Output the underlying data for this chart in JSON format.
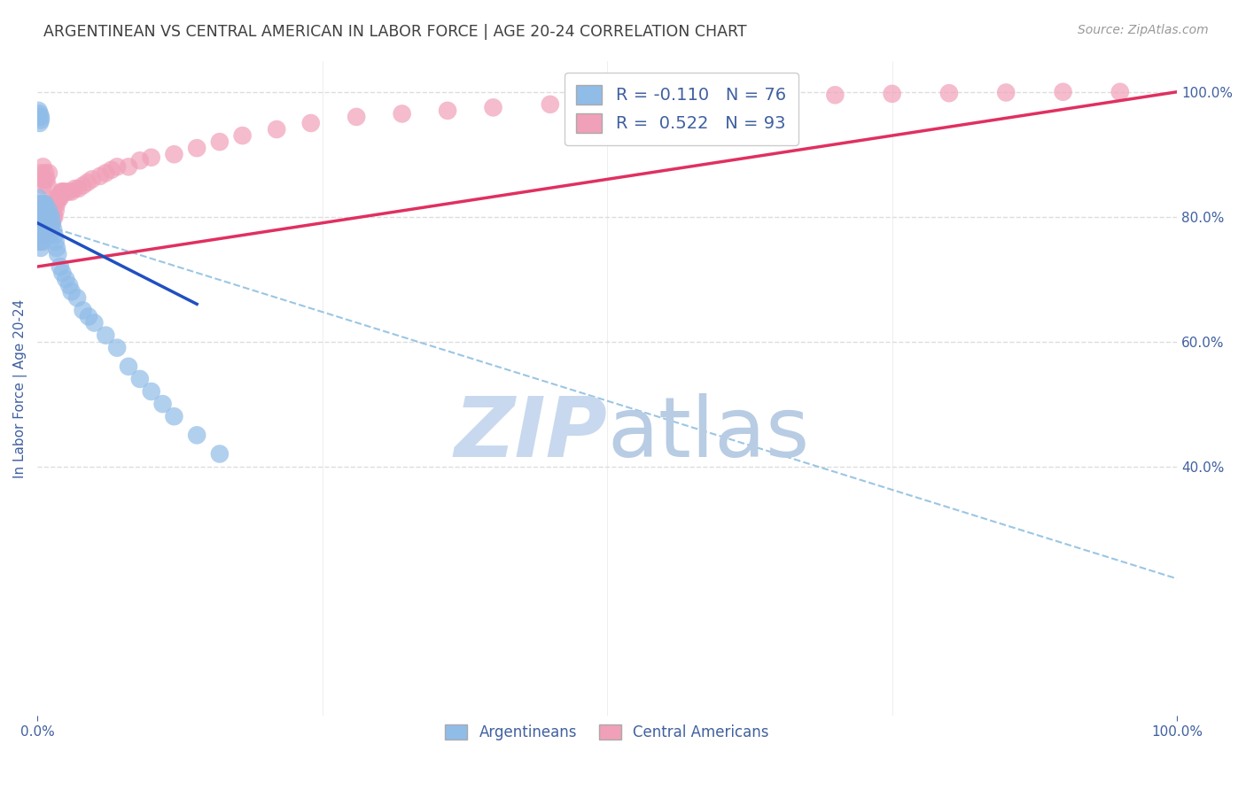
{
  "title": "ARGENTINEAN VS CENTRAL AMERICAN IN LABOR FORCE | AGE 20-24 CORRELATION CHART",
  "source": "Source: ZipAtlas.com",
  "ylabel": "In Labor Force | Age 20-24",
  "argentinean_color": "#90bce8",
  "central_american_color": "#f0a0b8",
  "argentinean_line_color": "#2050c0",
  "central_american_line_color": "#e03060",
  "dashed_line_color": "#90c0e0",
  "watermark_zip_color": "#c8d8ee",
  "watermark_atlas_color": "#c8d8ee",
  "background_color": "#ffffff",
  "grid_color": "#dddddd",
  "title_color": "#404040",
  "axis_label_color": "#4060a0",
  "arg_x": [
    0.001,
    0.001,
    0.001,
    0.001,
    0.001,
    0.002,
    0.002,
    0.002,
    0.002,
    0.002,
    0.002,
    0.003,
    0.003,
    0.003,
    0.003,
    0.003,
    0.003,
    0.004,
    0.004,
    0.004,
    0.004,
    0.005,
    0.005,
    0.005,
    0.005,
    0.005,
    0.006,
    0.006,
    0.006,
    0.006,
    0.007,
    0.007,
    0.007,
    0.007,
    0.008,
    0.008,
    0.008,
    0.009,
    0.009,
    0.01,
    0.01,
    0.01,
    0.011,
    0.011,
    0.012,
    0.012,
    0.013,
    0.014,
    0.015,
    0.016,
    0.017,
    0.018,
    0.02,
    0.022,
    0.025,
    0.028,
    0.03,
    0.035,
    0.04,
    0.045,
    0.05,
    0.06,
    0.07,
    0.08,
    0.09,
    0.1,
    0.11,
    0.12,
    0.14,
    0.16,
    0.001,
    0.001,
    0.002,
    0.002,
    0.003,
    0.003
  ],
  "arg_y": [
    0.78,
    0.79,
    0.8,
    0.82,
    0.83,
    0.76,
    0.77,
    0.79,
    0.8,
    0.81,
    0.82,
    0.75,
    0.77,
    0.79,
    0.8,
    0.81,
    0.82,
    0.77,
    0.79,
    0.8,
    0.81,
    0.76,
    0.78,
    0.79,
    0.8,
    0.82,
    0.78,
    0.8,
    0.81,
    0.82,
    0.78,
    0.79,
    0.8,
    0.82,
    0.78,
    0.79,
    0.81,
    0.78,
    0.8,
    0.78,
    0.79,
    0.81,
    0.77,
    0.8,
    0.78,
    0.8,
    0.79,
    0.78,
    0.77,
    0.76,
    0.75,
    0.74,
    0.72,
    0.71,
    0.7,
    0.69,
    0.68,
    0.67,
    0.65,
    0.64,
    0.63,
    0.61,
    0.59,
    0.56,
    0.54,
    0.52,
    0.5,
    0.48,
    0.45,
    0.42,
    0.96,
    0.97,
    0.95,
    0.965,
    0.96,
    0.955
  ],
  "ca_x": [
    0.001,
    0.001,
    0.002,
    0.002,
    0.002,
    0.003,
    0.003,
    0.003,
    0.003,
    0.004,
    0.004,
    0.004,
    0.005,
    0.005,
    0.005,
    0.005,
    0.006,
    0.006,
    0.007,
    0.007,
    0.007,
    0.008,
    0.008,
    0.008,
    0.009,
    0.009,
    0.01,
    0.01,
    0.01,
    0.011,
    0.011,
    0.012,
    0.012,
    0.013,
    0.013,
    0.014,
    0.014,
    0.015,
    0.015,
    0.016,
    0.016,
    0.017,
    0.018,
    0.019,
    0.02,
    0.021,
    0.022,
    0.023,
    0.025,
    0.027,
    0.03,
    0.033,
    0.036,
    0.04,
    0.044,
    0.048,
    0.055,
    0.06,
    0.065,
    0.07,
    0.08,
    0.09,
    0.1,
    0.12,
    0.14,
    0.16,
    0.18,
    0.21,
    0.24,
    0.28,
    0.32,
    0.36,
    0.4,
    0.45,
    0.5,
    0.55,
    0.6,
    0.65,
    0.7,
    0.75,
    0.8,
    0.85,
    0.9,
    0.95,
    0.003,
    0.004,
    0.005,
    0.005,
    0.006,
    0.007,
    0.008,
    0.009,
    0.01
  ],
  "ca_y": [
    0.78,
    0.79,
    0.76,
    0.78,
    0.8,
    0.76,
    0.78,
    0.79,
    0.81,
    0.77,
    0.79,
    0.81,
    0.78,
    0.79,
    0.8,
    0.82,
    0.78,
    0.8,
    0.78,
    0.8,
    0.82,
    0.78,
    0.8,
    0.82,
    0.79,
    0.81,
    0.78,
    0.8,
    0.82,
    0.79,
    0.81,
    0.79,
    0.81,
    0.79,
    0.81,
    0.8,
    0.82,
    0.8,
    0.82,
    0.81,
    0.83,
    0.82,
    0.83,
    0.83,
    0.83,
    0.84,
    0.84,
    0.84,
    0.84,
    0.84,
    0.84,
    0.845,
    0.845,
    0.85,
    0.855,
    0.86,
    0.865,
    0.87,
    0.875,
    0.88,
    0.88,
    0.89,
    0.895,
    0.9,
    0.91,
    0.92,
    0.93,
    0.94,
    0.95,
    0.96,
    0.965,
    0.97,
    0.975,
    0.98,
    0.985,
    0.988,
    0.99,
    0.992,
    0.995,
    0.997,
    0.998,
    0.999,
    1.0,
    1.0,
    0.87,
    0.86,
    0.85,
    0.88,
    0.86,
    0.87,
    0.86,
    0.85,
    0.87
  ],
  "arg_line_x0": 0.0,
  "arg_line_x1": 0.14,
  "arg_line_y0": 0.79,
  "arg_line_y1": 0.66,
  "ca_line_x0": 0.0,
  "ca_line_x1": 1.0,
  "ca_line_y0": 0.72,
  "ca_line_y1": 1.0,
  "dash_line_x0": 0.0,
  "dash_line_x1": 1.0,
  "dash_line_y0": 0.79,
  "dash_line_y1": 0.22,
  "xmin": 0.0,
  "xmax": 1.0,
  "ymin": 0.0,
  "ymax": 1.05,
  "yticks": [
    0.4,
    0.6,
    0.8,
    1.0
  ],
  "ytick_labels": [
    "40.0%",
    "60.0%",
    "80.0%",
    "100.0%"
  ],
  "xticks": [
    0.0,
    1.0
  ],
  "xtick_labels": [
    "0.0%",
    "100.0%"
  ]
}
